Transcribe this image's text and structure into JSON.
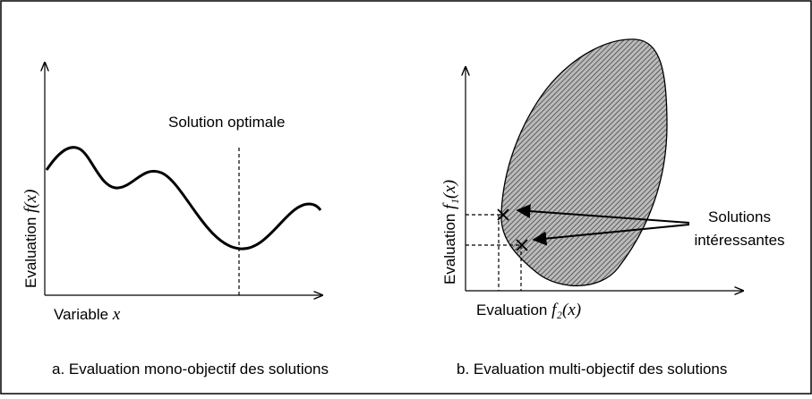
{
  "panels": [
    {
      "x_label": "Variable",
      "x_math": "x",
      "y_label": "Evaluation",
      "y_math": "f(x)",
      "annotation": "Solution optimale",
      "caption": "a. Evaluation mono-objectif des solutions"
    },
    {
      "x_label": "Evaluation",
      "x_math": "f₂(x)",
      "y_label": "Evaluation",
      "y_math": "f₁(x)",
      "annotation_lines": [
        "Solutions",
        "intéressantes"
      ],
      "caption": "b. Evaluation multi-objectif des solutions"
    }
  ]
}
